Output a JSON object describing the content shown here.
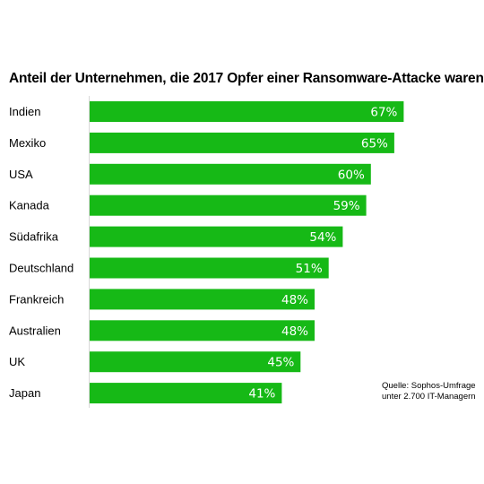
{
  "chart_data": {
    "type": "bar",
    "orientation": "horizontal",
    "title": "Anteil der Unternehmen, die 2017 Opfer einer Ransomware-Attacke waren",
    "categories": [
      "Indien",
      "Mexiko",
      "USA",
      "Kanada",
      "Südafrika",
      "Deutschland",
      "Frankreich",
      "Australien",
      "UK",
      "Japan"
    ],
    "values": [
      67,
      65,
      60,
      59,
      54,
      51,
      48,
      48,
      45,
      41
    ],
    "value_labels": [
      "67%",
      "65%",
      "60%",
      "59%",
      "54%",
      "51%",
      "48%",
      "48%",
      "45%",
      "41%"
    ],
    "xlim": [
      0,
      100
    ],
    "unit": "%",
    "bar_color": "#16b916",
    "value_label_color": "#ffffff",
    "grid": false,
    "legend": "none"
  },
  "source": {
    "line1": "Quelle: Sophos-Umfrage",
    "line2": "unter 2.700 IT-Managern"
  }
}
